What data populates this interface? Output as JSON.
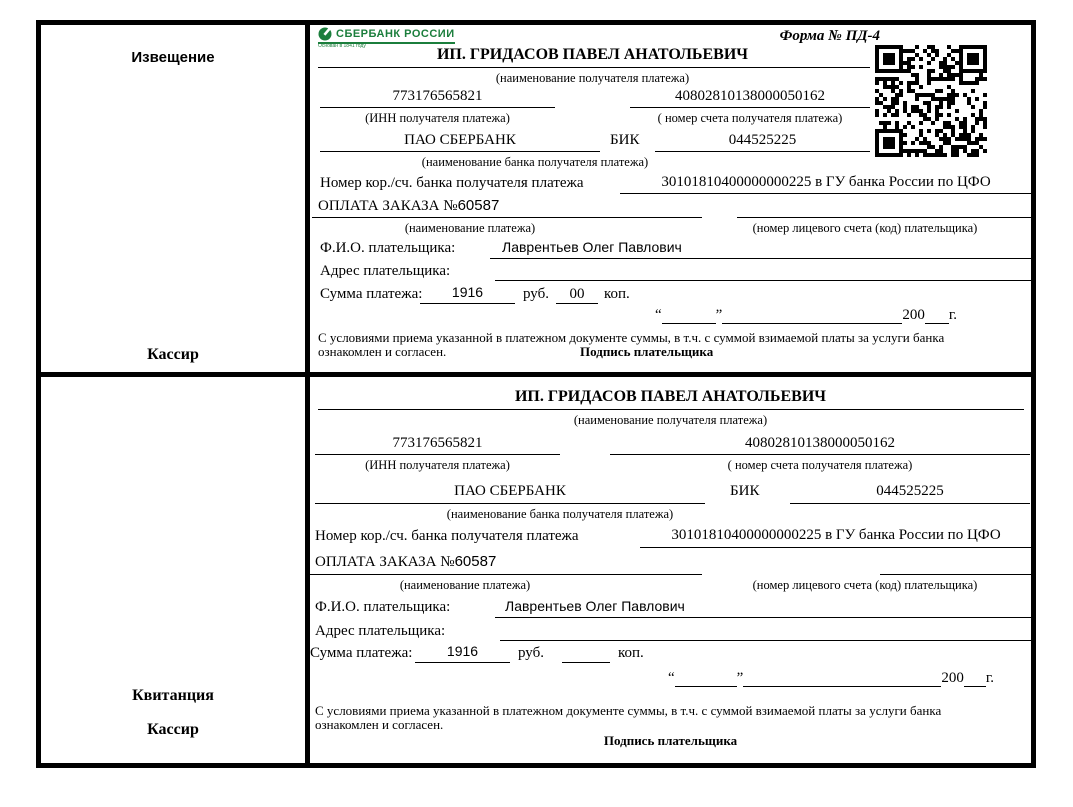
{
  "colors": {
    "logo_green": "#1b7e3c",
    "ink": "#000000"
  },
  "logo": {
    "text": "СБЕРБАНК РОССИИ",
    "tagline": "Основан в 1841 году"
  },
  "form_number": "Форма № ПД-4",
  "stub": {
    "notice_label": "Извещение",
    "receipt_label": "Квитанция",
    "cashier_label": "Кассир"
  },
  "fields": {
    "recipient": "ИП. ГРИДАСОВ ПАВЕЛ АНАТОЛЬЕВИЧ",
    "recipient_caption": "(наименование получателя платежа)",
    "inn": "773176565821",
    "inn_caption": "(ИНН получателя платежа)",
    "account": "40802810138000050162",
    "account_caption": "( номер счета получателя платежа)",
    "bank": "ПАО СБЕРБАНК",
    "bank_caption": "(наименование банка получателя платежа)",
    "bik_label": "БИК",
    "bik": "044525225",
    "corr_label": "Номер кор./сч. банка получателя платежа",
    "corr_value": "30101810400000000225 в ГУ банка России по ЦФО",
    "payment_label": "ОПЛАТА ЗАКАЗА №",
    "order_no": "60587",
    "payment_caption": "(наименование платежа)",
    "personal_caption": "(номер лицевого счета (код) плательщика)",
    "payer_label": "Ф.И.О. плательщика:",
    "payer_name": "Лаврентьев Олег Павлович",
    "address_label": "Адрес плательщика:",
    "amount_label": "Сумма платежа:",
    "amount_rub": "1916",
    "rub": "руб.",
    "kop_value_notice": "00",
    "kop_value_receipt": "",
    "kop": "коп.",
    "open_quote": "“",
    "close_quote": "”",
    "year": "200",
    "year_suffix": "г.",
    "terms_line1": "С условиями приема указанной в платежном документе суммы, в т.ч. с суммой взимаемой платы за услуги банка",
    "terms_line2": "ознакомлен и согласен.",
    "signature": "Подпись плательщика"
  }
}
